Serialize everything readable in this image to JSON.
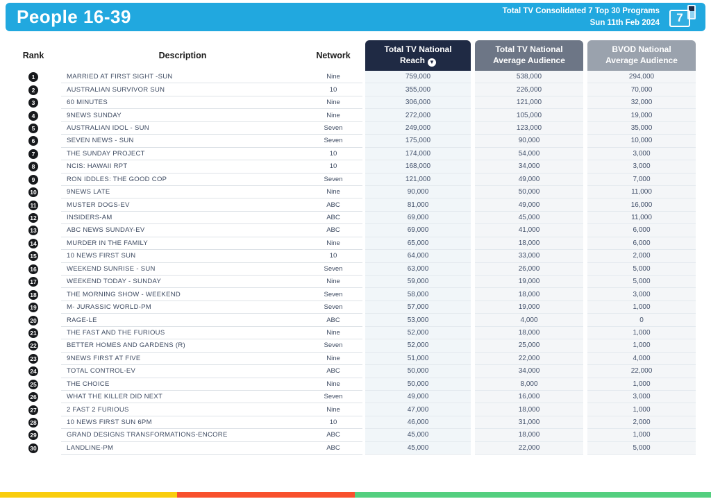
{
  "header": {
    "title": "People 16-39",
    "subtitle_line1": "Total TV Consolidated 7 Top 30 Programs",
    "subtitle_line2": "Sun 11th Feb 2024",
    "device_number": "7",
    "bg_color": "#21a8df"
  },
  "table": {
    "columns": {
      "rank": "Rank",
      "description": "Description",
      "network": "Network",
      "reach": "Total TV National Reach",
      "ttv_avg": "Total TV National Average Audience",
      "bvod_avg": "BVOD National Average Audience"
    },
    "sort_icon_glyph": "▼",
    "header_colors": {
      "reach_bg": "#1f2a44",
      "ttv_avg_bg": "#6d7686",
      "bvod_avg_bg": "#9aa2ad"
    },
    "rows": [
      {
        "rank": "1",
        "description": "MARRIED AT FIRST SIGHT -SUN",
        "network": "Nine",
        "reach": "759,000",
        "ttv_avg": "538,000",
        "bvod_avg": "294,000"
      },
      {
        "rank": "2",
        "description": "AUSTRALIAN SURVIVOR SUN",
        "network": "10",
        "reach": "355,000",
        "ttv_avg": "226,000",
        "bvod_avg": "70,000"
      },
      {
        "rank": "3",
        "description": "60 MINUTES",
        "network": "Nine",
        "reach": "306,000",
        "ttv_avg": "121,000",
        "bvod_avg": "32,000"
      },
      {
        "rank": "4",
        "description": "9NEWS SUNDAY",
        "network": "Nine",
        "reach": "272,000",
        "ttv_avg": "105,000",
        "bvod_avg": "19,000"
      },
      {
        "rank": "5",
        "description": "AUSTRALIAN IDOL - SUN",
        "network": "Seven",
        "reach": "249,000",
        "ttv_avg": "123,000",
        "bvod_avg": "35,000"
      },
      {
        "rank": "6",
        "description": "SEVEN NEWS - SUN",
        "network": "Seven",
        "reach": "175,000",
        "ttv_avg": "90,000",
        "bvod_avg": "10,000"
      },
      {
        "rank": "7",
        "description": "THE SUNDAY PROJECT",
        "network": "10",
        "reach": "174,000",
        "ttv_avg": "54,000",
        "bvod_avg": "3,000"
      },
      {
        "rank": "8",
        "description": "NCIS: HAWAII RPT",
        "network": "10",
        "reach": "168,000",
        "ttv_avg": "34,000",
        "bvod_avg": "3,000"
      },
      {
        "rank": "9",
        "description": "RON IDDLES: THE GOOD COP",
        "network": "Seven",
        "reach": "121,000",
        "ttv_avg": "49,000",
        "bvod_avg": "7,000"
      },
      {
        "rank": "10",
        "description": "9NEWS LATE",
        "network": "Nine",
        "reach": "90,000",
        "ttv_avg": "50,000",
        "bvod_avg": "11,000"
      },
      {
        "rank": "11",
        "description": "MUSTER DOGS-EV",
        "network": "ABC",
        "reach": "81,000",
        "ttv_avg": "49,000",
        "bvod_avg": "16,000"
      },
      {
        "rank": "12",
        "description": "INSIDERS-AM",
        "network": "ABC",
        "reach": "69,000",
        "ttv_avg": "45,000",
        "bvod_avg": "11,000"
      },
      {
        "rank": "13",
        "description": "ABC NEWS SUNDAY-EV",
        "network": "ABC",
        "reach": "69,000",
        "ttv_avg": "41,000",
        "bvod_avg": "6,000"
      },
      {
        "rank": "14",
        "description": "MURDER IN THE FAMILY",
        "network": "Nine",
        "reach": "65,000",
        "ttv_avg": "18,000",
        "bvod_avg": "6,000"
      },
      {
        "rank": "15",
        "description": "10 NEWS FIRST SUN",
        "network": "10",
        "reach": "64,000",
        "ttv_avg": "33,000",
        "bvod_avg": "2,000"
      },
      {
        "rank": "16",
        "description": "WEEKEND SUNRISE - SUN",
        "network": "Seven",
        "reach": "63,000",
        "ttv_avg": "26,000",
        "bvod_avg": "5,000"
      },
      {
        "rank": "17",
        "description": "WEEKEND TODAY - SUNDAY",
        "network": "Nine",
        "reach": "59,000",
        "ttv_avg": "19,000",
        "bvod_avg": "5,000"
      },
      {
        "rank": "18",
        "description": "THE MORNING SHOW - WEEKEND",
        "network": "Seven",
        "reach": "58,000",
        "ttv_avg": "18,000",
        "bvod_avg": "3,000"
      },
      {
        "rank": "19",
        "description": "M- JURASSIC WORLD-PM",
        "network": "Seven",
        "reach": "57,000",
        "ttv_avg": "19,000",
        "bvod_avg": "1,000"
      },
      {
        "rank": "20",
        "description": "RAGE-LE",
        "network": "ABC",
        "reach": "53,000",
        "ttv_avg": "4,000",
        "bvod_avg": "0"
      },
      {
        "rank": "21",
        "description": "THE FAST AND THE FURIOUS",
        "network": "Nine",
        "reach": "52,000",
        "ttv_avg": "18,000",
        "bvod_avg": "1,000"
      },
      {
        "rank": "22",
        "description": "BETTER HOMES AND GARDENS (R)",
        "network": "Seven",
        "reach": "52,000",
        "ttv_avg": "25,000",
        "bvod_avg": "1,000"
      },
      {
        "rank": "23",
        "description": "9NEWS FIRST AT FIVE",
        "network": "Nine",
        "reach": "51,000",
        "ttv_avg": "22,000",
        "bvod_avg": "4,000"
      },
      {
        "rank": "24",
        "description": "TOTAL CONTROL-EV",
        "network": "ABC",
        "reach": "50,000",
        "ttv_avg": "34,000",
        "bvod_avg": "22,000"
      },
      {
        "rank": "25",
        "description": "THE CHOICE",
        "network": "Nine",
        "reach": "50,000",
        "ttv_avg": "8,000",
        "bvod_avg": "1,000"
      },
      {
        "rank": "26",
        "description": "WHAT THE KILLER DID NEXT",
        "network": "Seven",
        "reach": "49,000",
        "ttv_avg": "16,000",
        "bvod_avg": "3,000"
      },
      {
        "rank": "27",
        "description": "2 FAST 2 FURIOUS",
        "network": "Nine",
        "reach": "47,000",
        "ttv_avg": "18,000",
        "bvod_avg": "1,000"
      },
      {
        "rank": "28",
        "description": "10 NEWS FIRST SUN 6PM",
        "network": "10",
        "reach": "46,000",
        "ttv_avg": "31,000",
        "bvod_avg": "2,000"
      },
      {
        "rank": "29",
        "description": "GRAND DESIGNS TRANSFORMATIONS-ENCORE",
        "network": "ABC",
        "reach": "45,000",
        "ttv_avg": "18,000",
        "bvod_avg": "1,000"
      },
      {
        "rank": "30",
        "description": "LANDLINE-PM",
        "network": "ABC",
        "reach": "45,000",
        "ttv_avg": "22,000",
        "bvod_avg": "5,000"
      }
    ]
  },
  "footer": {
    "stripe_colors": [
      "#f9cd0d",
      "#f8502d",
      "#54cf7f"
    ]
  }
}
